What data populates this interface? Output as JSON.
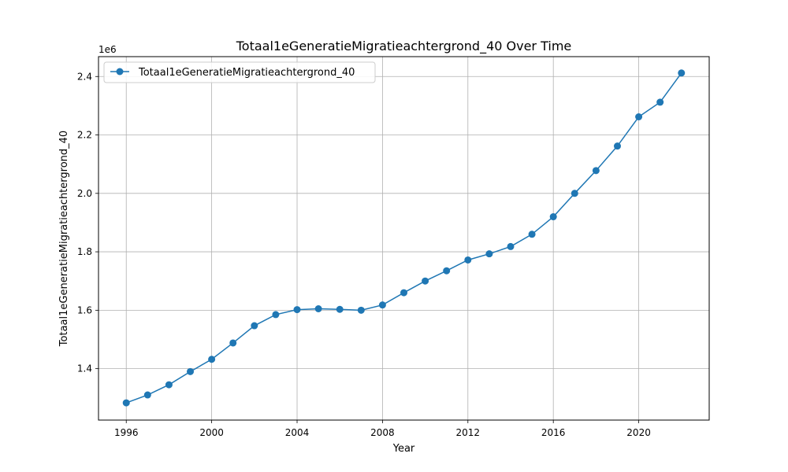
{
  "chart_data": {
    "type": "line",
    "title": "Totaal1eGeneratieMigratieachtergrond_40 Over Time",
    "xlabel": "Year",
    "ylabel": "Totaal1eGeneratieMigratieachtergrond_40",
    "y_offset_label": "1e6",
    "x_ticks": [
      "1996",
      "2000",
      "2004",
      "2008",
      "2012",
      "2016",
      "2020"
    ],
    "y_ticks": [
      "1.4",
      "1.6",
      "1.8",
      "2.0",
      "2.2",
      "2.4"
    ],
    "xlim": [
      1994.7,
      2023.3
    ],
    "ylim": [
      1224000,
      2468000
    ],
    "grid": true,
    "legend_position": "upper left",
    "series": [
      {
        "name": "Totaal1eGeneratieMigratieachtergrond_40",
        "color": "#1f77b4",
        "marker": "circle",
        "x": [
          1996,
          1997,
          1998,
          1999,
          2000,
          2001,
          2002,
          2003,
          2004,
          2005,
          2006,
          2007,
          2008,
          2009,
          2010,
          2011,
          2012,
          2013,
          2014,
          2015,
          2016,
          2017,
          2018,
          2019,
          2020,
          2021,
          2022
        ],
        "values": [
          1283000,
          1310000,
          1345000,
          1390000,
          1432000,
          1488000,
          1547000,
          1585000,
          1602000,
          1605000,
          1603000,
          1600000,
          1618000,
          1660000,
          1700000,
          1735000,
          1772000,
          1793000,
          1818000,
          1860000,
          1920000,
          2000000,
          2078000,
          2162000,
          2262000,
          2312000,
          2412000
        ]
      }
    ]
  }
}
